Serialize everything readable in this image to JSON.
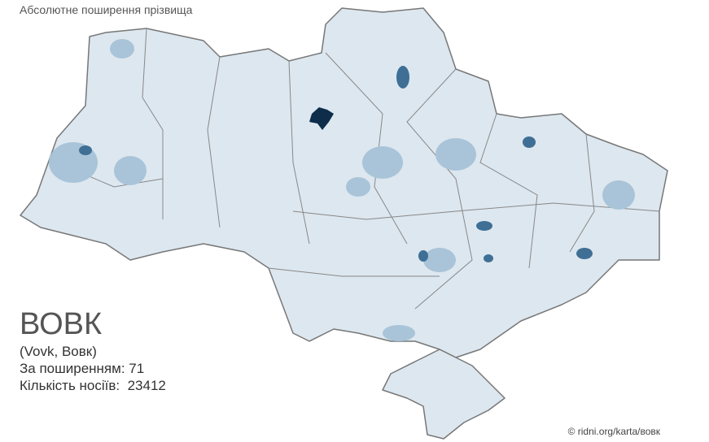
{
  "header": {
    "title": "Абсолютне поширення прізвища"
  },
  "surname": {
    "name": "ВОВК",
    "variants": "(Vovk, Вовк)",
    "rank_label": "За поширенням:",
    "rank": 71,
    "count_label": "Кількість носіїв:",
    "count": 23412
  },
  "footer": {
    "credit": "© ridni.org/karta/вовк"
  }
}
